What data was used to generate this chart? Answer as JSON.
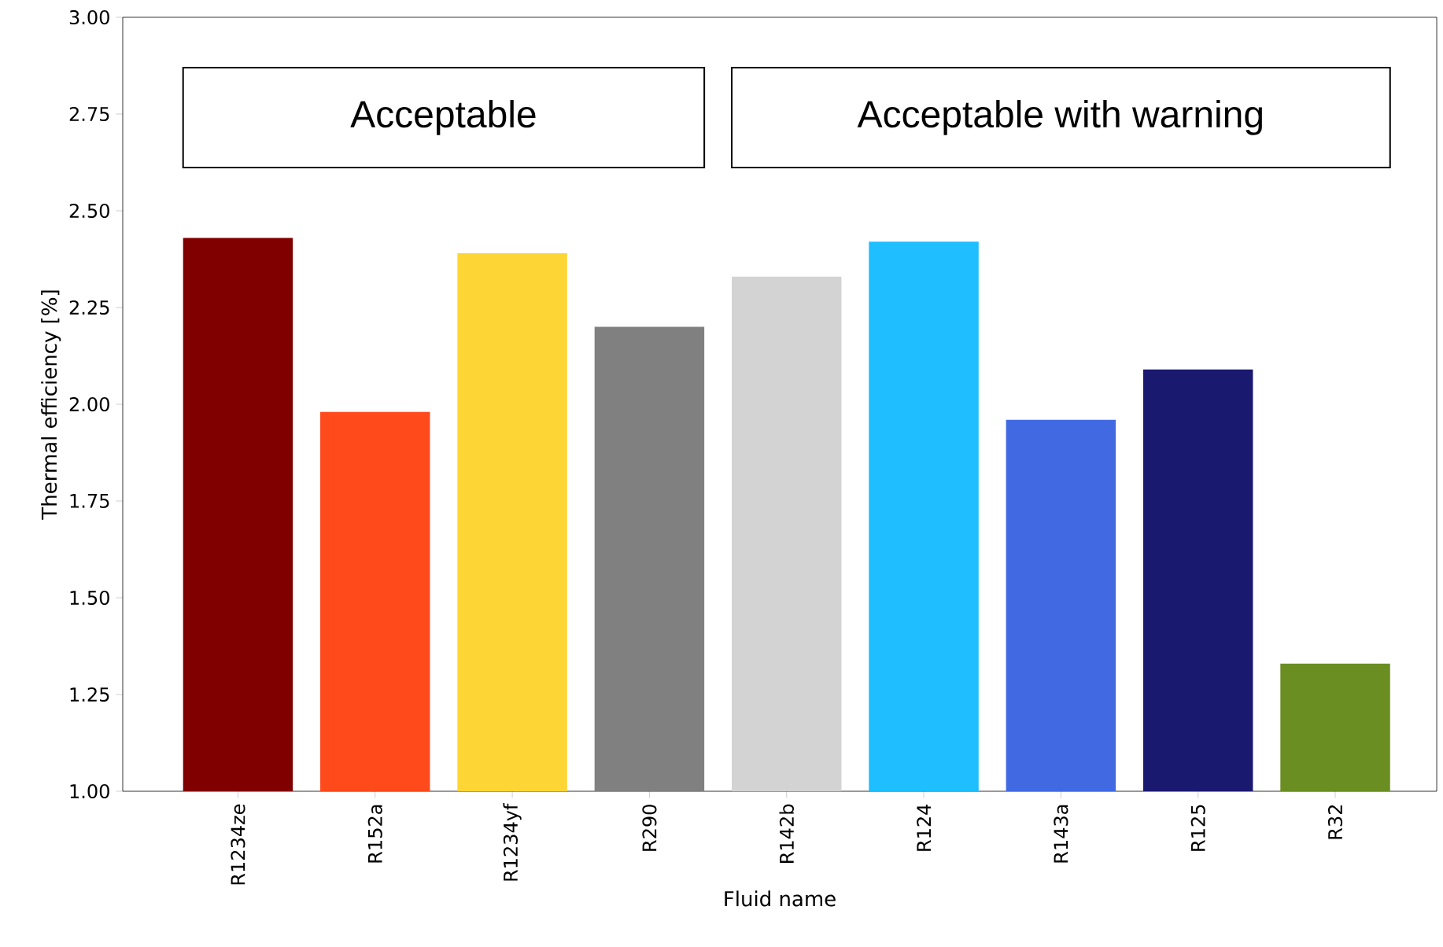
{
  "chart_data": {
    "type": "bar",
    "xlabel": "Fluid name",
    "ylabel": "Thermal efficiency [%]",
    "categories": [
      "R1234ze",
      "R152a",
      "R1234yf",
      "R290",
      "R142b",
      "R124",
      "R143a",
      "R125",
      "R32"
    ],
    "values": [
      2.43,
      1.98,
      2.39,
      2.2,
      2.33,
      2.42,
      1.96,
      2.09,
      1.33
    ],
    "colors": [
      "#800000",
      "#ff4a1c",
      "#fdd535",
      "#808080",
      "#d3d3d3",
      "#1ebeff",
      "#4169e1",
      "#191970",
      "#6b8e23"
    ],
    "ylim": [
      1.0,
      3.0
    ],
    "yticks": [
      {
        "value": 1.0,
        "label": "1.00"
      },
      {
        "value": 1.25,
        "label": "1.25"
      },
      {
        "value": 1.5,
        "label": "1.50"
      },
      {
        "value": 1.75,
        "label": "1.75"
      },
      {
        "value": 2.0,
        "label": "2.00"
      },
      {
        "value": 2.25,
        "label": "2.25"
      },
      {
        "value": 2.5,
        "label": "2.50"
      },
      {
        "value": 2.75,
        "label": "2.75"
      },
      {
        "value": 3.0,
        "label": "3.00"
      }
    ],
    "annotations": [
      "Acceptable",
      "Acceptable with warning"
    ]
  }
}
